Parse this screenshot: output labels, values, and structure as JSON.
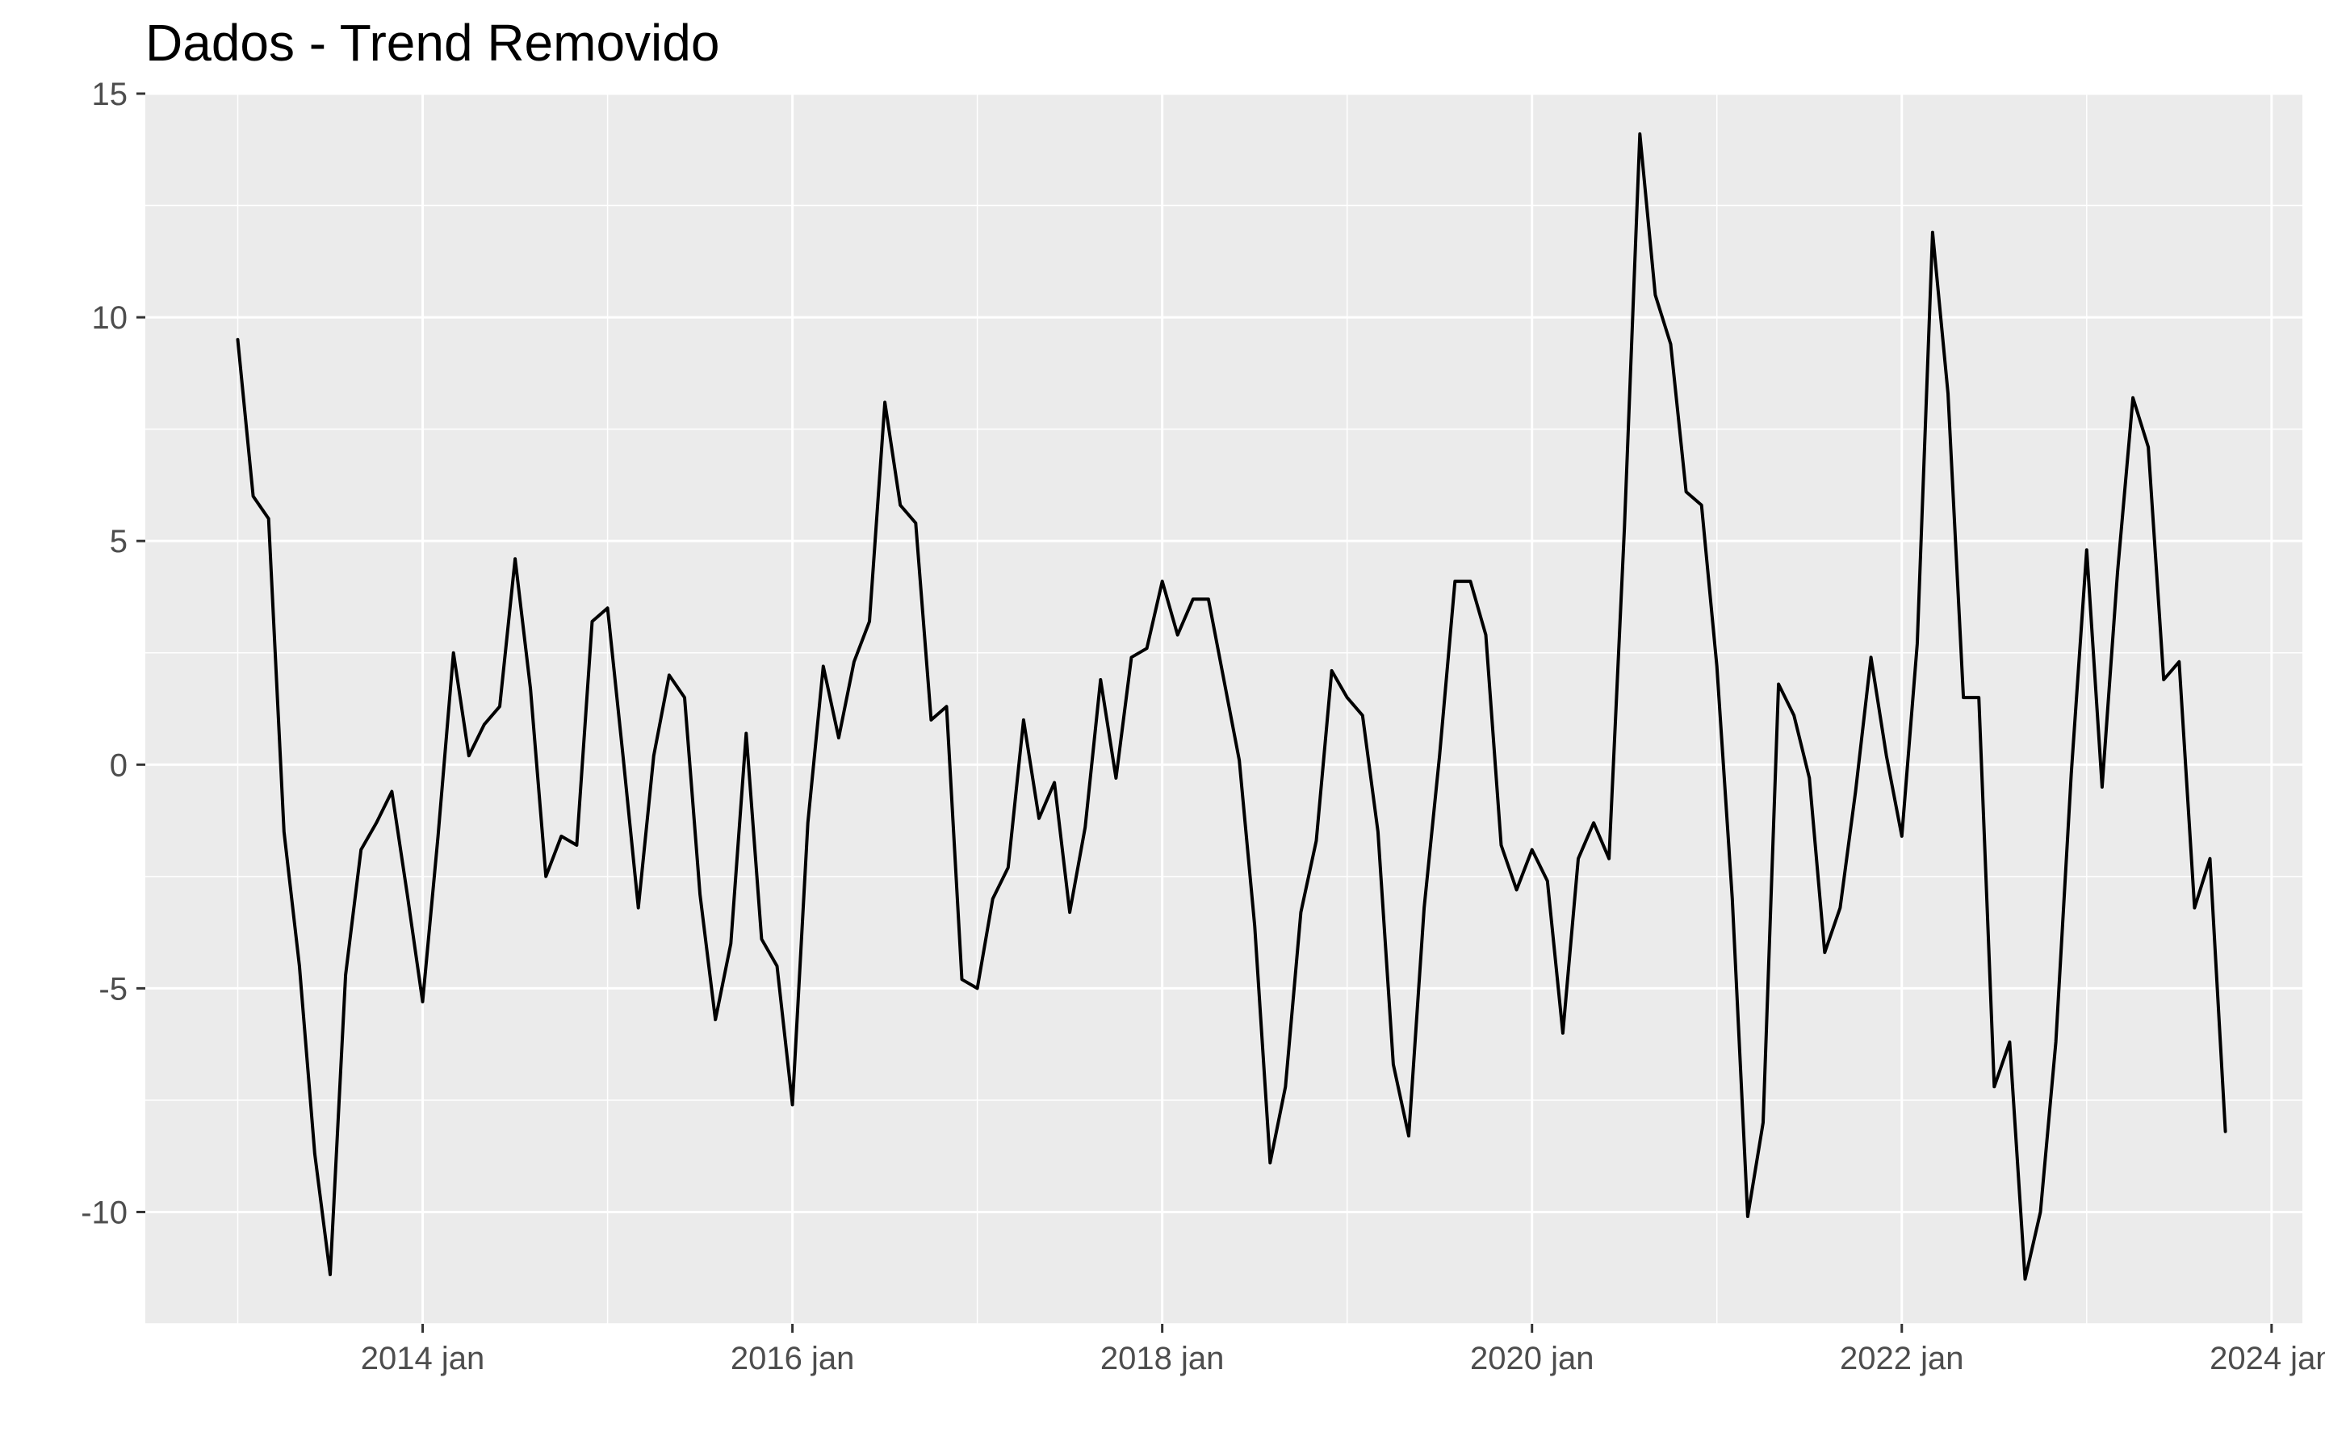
{
  "chart_data": {
    "type": "line",
    "title": "Dados - Trend Removido",
    "xlabel": "",
    "ylabel": "",
    "x_start": "2013-01",
    "x_frequency": "monthly",
    "x_range": [
      "2012-07",
      "2024-03"
    ],
    "ylim": [
      -12.5,
      15
    ],
    "y_ticks": [
      15,
      10,
      5,
      0,
      -5,
      -10
    ],
    "y_tick_labels": [
      "15",
      "10",
      "5",
      "0",
      "-5",
      "-10"
    ],
    "x_ticks": [
      "2014-01",
      "2016-01",
      "2018-01",
      "2020-01",
      "2022-01",
      "2024-01"
    ],
    "x_tick_labels": [
      "2014 jan",
      "2016 jan",
      "2018 jan",
      "2020 jan",
      "2022 jan",
      "2024 jan"
    ],
    "grid": true,
    "background": "#EBEBEB",
    "grid_color": "#FFFFFF",
    "line_color": "#000000",
    "series": [
      {
        "values": [
          9.5,
          6.0,
          5.5,
          -1.5,
          -4.5,
          -8.7,
          -11.4,
          -4.7,
          -1.9,
          -1.3,
          -0.6,
          -2.9,
          -5.3,
          -1.6,
          2.5,
          0.2,
          0.9,
          1.3,
          4.6,
          1.7,
          -2.5,
          -1.6,
          -1.8,
          3.2,
          3.5,
          0.2,
          -3.2,
          0.2,
          2.0,
          1.5,
          -2.9,
          -5.7,
          -4.0,
          0.7,
          -3.9,
          -4.5,
          -7.6,
          -1.3,
          2.2,
          0.6,
          2.3,
          3.2,
          8.1,
          5.8,
          5.4,
          1.0,
          1.3,
          -4.8,
          -5.0,
          -3.0,
          -2.3,
          1.0,
          -1.2,
          -0.4,
          -3.3,
          -1.4,
          1.9,
          -0.3,
          2.4,
          2.6,
          4.1,
          2.9,
          3.7,
          3.7,
          1.9,
          0.1,
          -3.6,
          -8.9,
          -7.2,
          -3.3,
          -1.7,
          2.1,
          1.5,
          1.1,
          -1.5,
          -6.7,
          -8.3,
          -3.2,
          0.2,
          4.1,
          4.1,
          2.9,
          -1.8,
          -2.8,
          -1.9,
          -2.6,
          -6.0,
          -2.1,
          -1.3,
          -2.1,
          5.3,
          14.1,
          10.5,
          9.4,
          6.1,
          5.8,
          2.2,
          -3.0,
          -10.1,
          -8.0,
          1.8,
          1.1,
          -0.3,
          -4.2,
          -3.2,
          -0.6,
          2.4,
          0.2,
          -1.6,
          2.7,
          11.9,
          8.3,
          1.5,
          1.5,
          -7.2,
          -6.2,
          -11.5,
          -10.0,
          -6.2,
          -0.2,
          4.8,
          -0.5,
          4.3,
          8.2,
          7.1,
          1.9,
          2.3,
          -3.2,
          -2.1,
          -8.2
        ]
      }
    ]
  }
}
